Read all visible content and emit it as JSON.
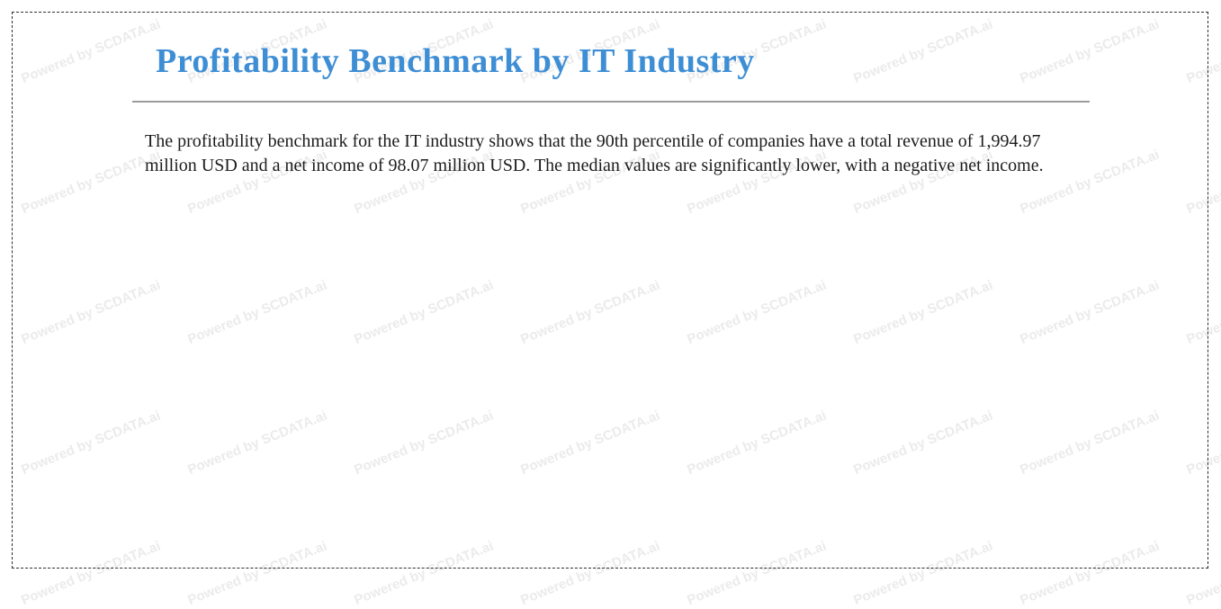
{
  "report": {
    "title": "Profitability Benchmark by IT Industry",
    "title_color": "#3e8ed5",
    "summary": "The profitability benchmark for the IT industry shows that the 90th percentile of companies have a total revenue of 1,994.97 million USD and a net income of 98.07 million USD. The median values are significantly lower, with a negative net income."
  },
  "watermark": {
    "text": "Powered by SCDATA.ai",
    "color": "#ebebeb"
  },
  "style": {
    "divider_color": "#9b9b9b",
    "border_color": "#2e2e2e",
    "body_text_color": "#1c1c1c"
  }
}
